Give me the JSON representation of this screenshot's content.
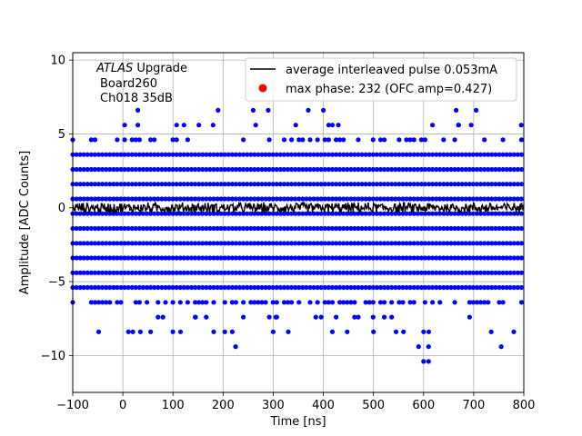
{
  "chart_data": {
    "type": "scatter",
    "xlabel": "Time [ns]",
    "ylabel": "Amplitude [ADC Counts]",
    "xlim": [
      -100,
      800
    ],
    "ylim": [
      -12.5,
      10.5
    ],
    "xticks": [
      -100,
      0,
      100,
      200,
      300,
      400,
      500,
      600,
      700,
      800
    ],
    "xtick_labels": [
      "−100",
      "0",
      "100",
      "200",
      "300",
      "400",
      "500",
      "600",
      "700",
      "800"
    ],
    "yticks": [
      -10,
      -5,
      0,
      5,
      10
    ],
    "ytick_labels": [
      "−10",
      "−5",
      "0",
      "5",
      "10"
    ],
    "grid": true,
    "legend_position": "top-right",
    "annotation": {
      "italic": "ATLAS",
      "line1_rest": " Upgrade",
      "line2": "Board260",
      "line3": "Ch018 35dB"
    },
    "series": [
      {
        "name": "average interleaved pulse 0.053mA",
        "kind": "line",
        "color": "#000000",
        "level": 0.0,
        "noise_amplitude": 0.4,
        "x_start": -100,
        "x_end": 800
      },
      {
        "name": "max phase: 232 (OFC amp=0.427)",
        "kind": "scatter",
        "color": "#0000ff",
        "amplitude_levels": [
          {
            "y": 5.6,
            "density": 0.1
          },
          {
            "y": 4.6,
            "density": 0.35
          },
          {
            "y": 3.6,
            "density": 1.0
          },
          {
            "y": 2.6,
            "density": 1.0
          },
          {
            "y": 1.6,
            "density": 1.0
          },
          {
            "y": 0.6,
            "density": 1.0
          },
          {
            "y": -0.4,
            "density": 1.0
          },
          {
            "y": -1.4,
            "density": 1.0
          },
          {
            "y": -2.4,
            "density": 1.0
          },
          {
            "y": -3.4,
            "density": 1.0
          },
          {
            "y": -4.4,
            "density": 1.0
          },
          {
            "y": -5.4,
            "density": 1.0
          },
          {
            "y": -6.4,
            "density": 0.45
          },
          {
            "y": -7.4,
            "density": 0.12
          },
          {
            "y": -8.4,
            "density": 0.05
          }
        ],
        "outliers": [
          {
            "x": 30,
            "y": 6.6
          },
          {
            "x": 190,
            "y": 6.6
          },
          {
            "x": 260,
            "y": 6.6
          },
          {
            "x": 290,
            "y": 6.6
          },
          {
            "x": 370,
            "y": 6.6
          },
          {
            "x": 400,
            "y": 6.6
          },
          {
            "x": 665,
            "y": 6.6
          },
          {
            "x": 705,
            "y": 6.6
          },
          {
            "x": 30,
            "y": 5.6
          },
          {
            "x": 180,
            "y": 5.6
          },
          {
            "x": 265,
            "y": 5.6
          },
          {
            "x": 345,
            "y": 5.6
          },
          {
            "x": 430,
            "y": 5.6
          },
          {
            "x": 670,
            "y": 5.6
          },
          {
            "x": 695,
            "y": 5.6
          },
          {
            "x": 795,
            "y": 5.6
          },
          {
            "x": 80,
            "y": -7.4
          },
          {
            "x": 145,
            "y": -7.4
          },
          {
            "x": 305,
            "y": -7.4
          },
          {
            "x": 385,
            "y": -7.4
          },
          {
            "x": 20,
            "y": -8.4
          },
          {
            "x": 35,
            "y": -8.4
          },
          {
            "x": 115,
            "y": -8.4
          },
          {
            "x": 300,
            "y": -8.4
          },
          {
            "x": 330,
            "y": -8.4
          },
          {
            "x": 500,
            "y": -8.4
          },
          {
            "x": 545,
            "y": -8.4
          },
          {
            "x": 560,
            "y": -8.4
          },
          {
            "x": 600,
            "y": -8.4
          },
          {
            "x": 735,
            "y": -8.4
          },
          {
            "x": 780,
            "y": -8.4
          },
          {
            "x": 225,
            "y": -9.4
          },
          {
            "x": 590,
            "y": -9.4
          },
          {
            "x": 610,
            "y": -9.4
          },
          {
            "x": 755,
            "y": -9.4
          },
          {
            "x": 600,
            "y": -10.4
          },
          {
            "x": 610,
            "y": -10.4
          }
        ]
      }
    ]
  }
}
